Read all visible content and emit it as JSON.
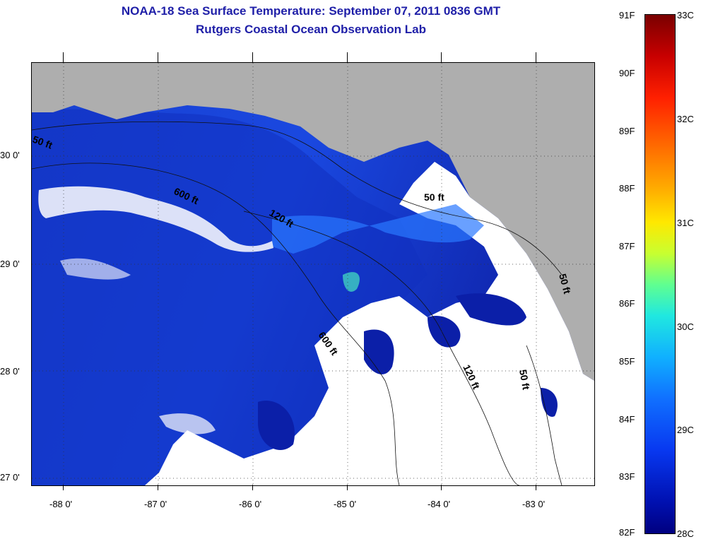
{
  "title": {
    "line1": "NOAA-18 Sea Surface Temperature:  September 07, 2011 0836 GMT",
    "line2": "Rutgers Coastal Ocean Observation Lab"
  },
  "map": {
    "lat_labels": [
      "30 0'",
      "29 0'",
      "28 0'",
      "27 0'"
    ],
    "lon_labels": [
      "-88 0'",
      "-87 0'",
      "-86 0'",
      "-85 0'",
      "-84 0'",
      "-83 0'"
    ],
    "contour_labels": [
      "50 ft",
      "600 ft",
      "120 ft",
      "50 ft",
      "600 ft",
      "120 ft",
      "50 ft",
      "50 ft"
    ],
    "colors": {
      "land": "#aeaeae",
      "cloud": "#ffffff",
      "water_deep": "#0a1aa0",
      "water_mid": "#1f4fe0",
      "water_warm": "#2fa0ff"
    }
  },
  "colorbar": {
    "f_labels": [
      "91F",
      "90F",
      "89F",
      "88F",
      "87F",
      "86F",
      "85F",
      "84F",
      "83F",
      "82F"
    ],
    "c_labels": [
      "33C",
      "32C",
      "31C",
      "30C",
      "29C",
      "28C"
    ],
    "min_f": 82,
    "max_f": 91,
    "min_c": 28,
    "max_c": 33
  }
}
